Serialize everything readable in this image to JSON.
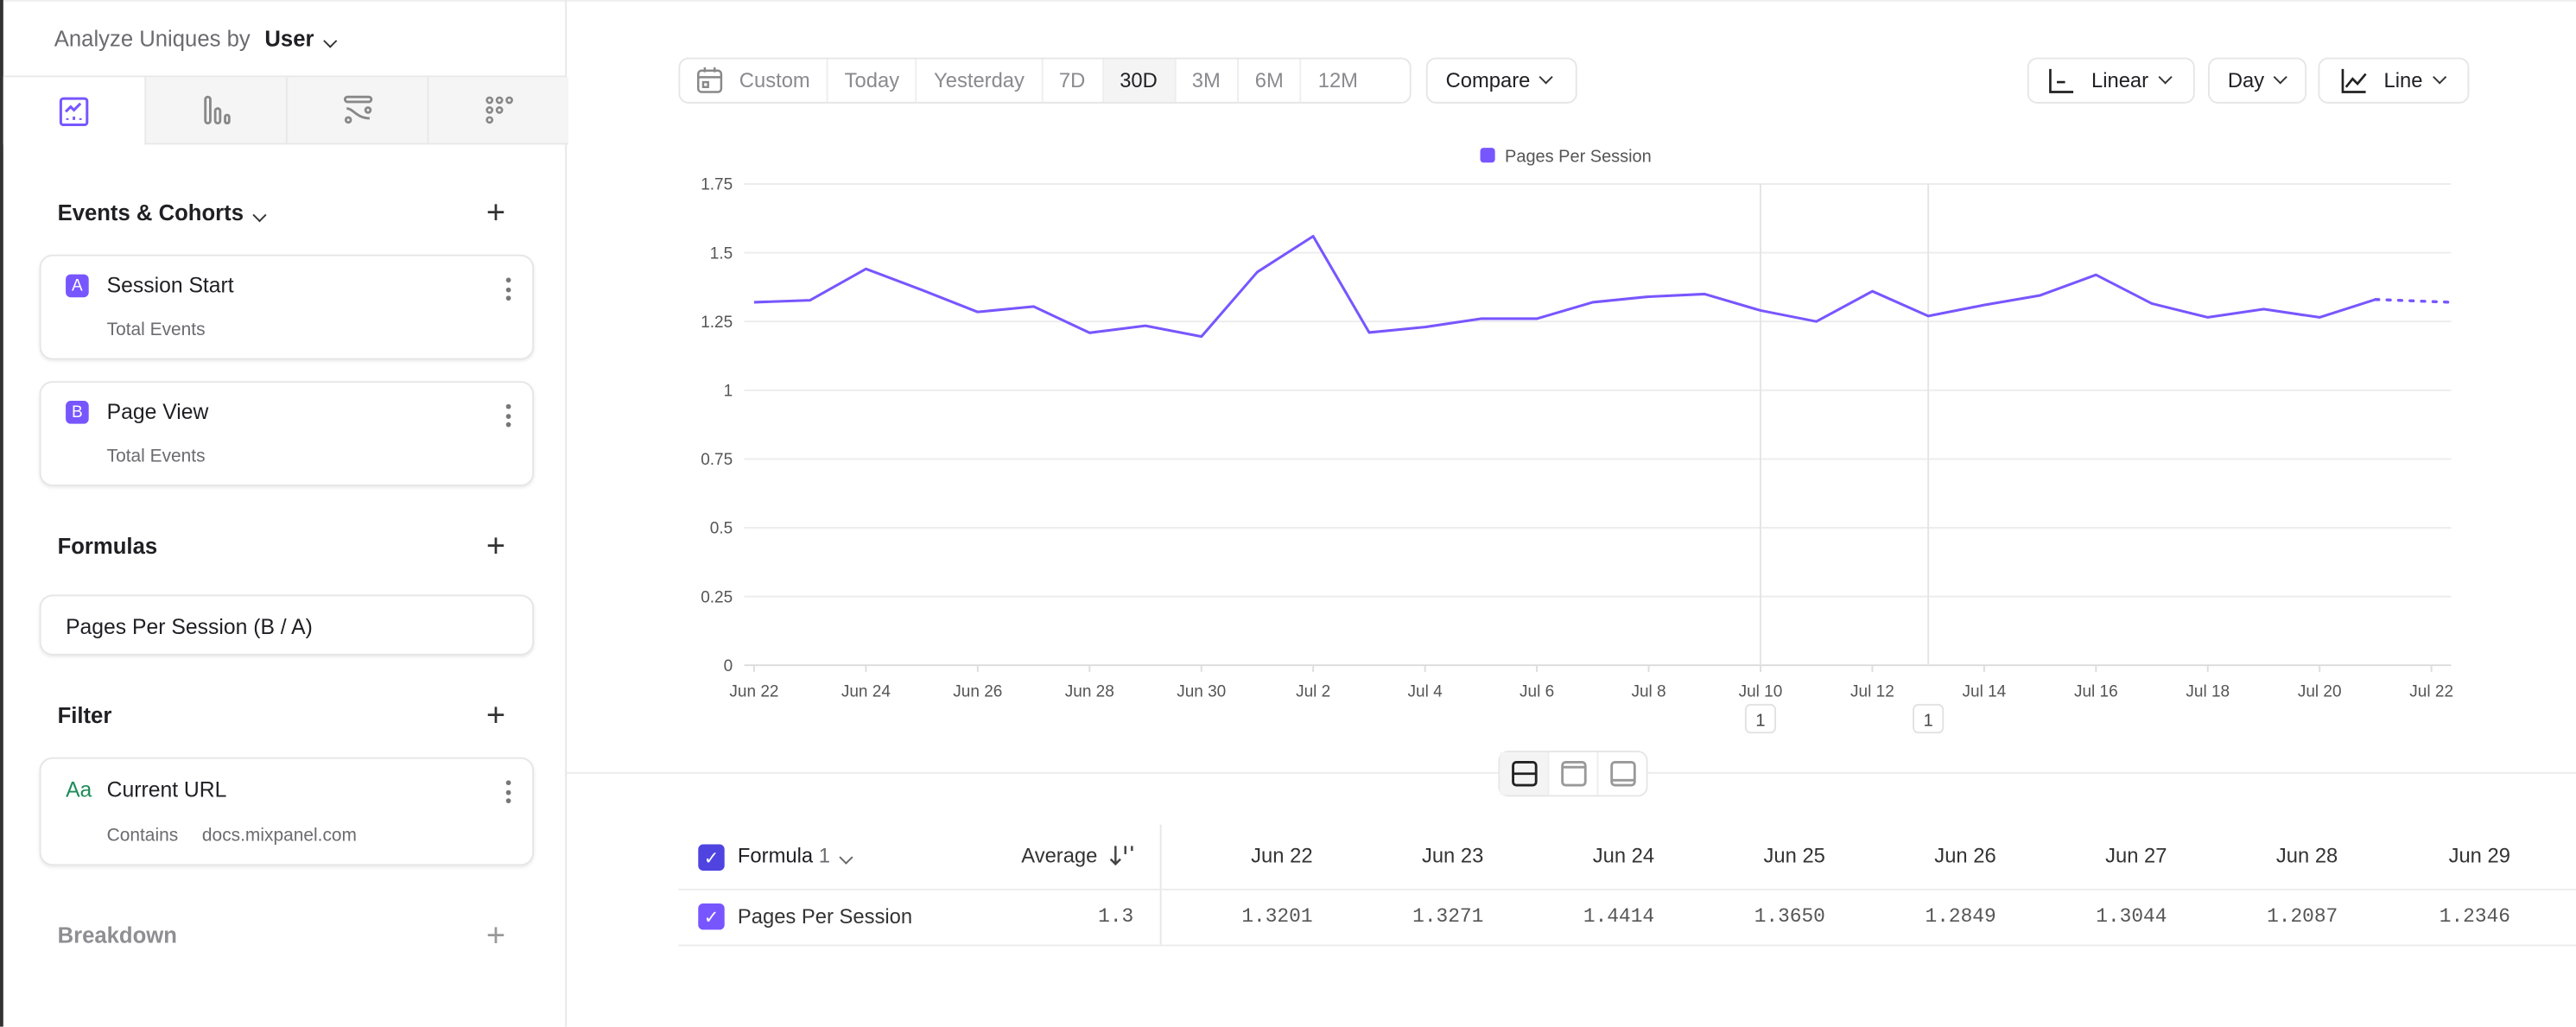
{
  "sidebar": {
    "analyze_label": "Analyze Uniques by",
    "analyze_value": "User",
    "tabs": [
      {
        "icon": "insights-chart-icon",
        "active": true
      },
      {
        "icon": "funnels-bars-icon",
        "active": false
      },
      {
        "icon": "flows-icon",
        "active": false
      },
      {
        "icon": "retention-grid-icon",
        "active": false
      }
    ],
    "events_title": "Events & Cohorts",
    "events": [
      {
        "badge": "A",
        "name": "Session Start",
        "sub": "Total Events"
      },
      {
        "badge": "B",
        "name": "Page View",
        "sub": "Total Events"
      }
    ],
    "formulas_title": "Formulas",
    "formula": "Pages Per Session (B / A)",
    "filter_title": "Filter",
    "filter": {
      "icon_text": "Aa",
      "name": "Current URL",
      "operator": "Contains",
      "value": "docs.mixpanel.com"
    },
    "breakdown_title": "Breakdown"
  },
  "toolbar": {
    "date_ranges": [
      "Custom",
      "Today",
      "Yesterday",
      "7D",
      "30D",
      "3M",
      "6M",
      "12M"
    ],
    "selected_range": "30D",
    "compare": "Compare",
    "scale": "Linear",
    "interval": "Day",
    "chart_type": "Line"
  },
  "chart_data": {
    "type": "line",
    "legend": [
      "Pages Per Session"
    ],
    "legend_placement": "top-center",
    "color": "#7856ff",
    "grid": true,
    "ylim": [
      0,
      1.75
    ],
    "yticks": [
      "0",
      "0.25",
      "0.5",
      "0.75",
      "1",
      "1.25",
      "1.5",
      "1.75"
    ],
    "xticks": [
      "Jun 22",
      "Jun 24",
      "Jun 26",
      "Jun 28",
      "Jun 30",
      "Jul 2",
      "Jul 4",
      "Jul 6",
      "Jul 8",
      "Jul 10",
      "Jul 12",
      "Jul 14",
      "Jul 16",
      "Jul 18",
      "Jul 20",
      "Jul 22"
    ],
    "x": [
      "Jun 22",
      "Jun 23",
      "Jun 24",
      "Jun 25",
      "Jun 26",
      "Jun 27",
      "Jun 28",
      "Jun 29",
      "Jun 30",
      "Jul 1",
      "Jul 2",
      "Jul 3",
      "Jul 4",
      "Jul 5",
      "Jul 6",
      "Jul 7",
      "Jul 8",
      "Jul 9",
      "Jul 10",
      "Jul 11",
      "Jul 12",
      "Jul 13",
      "Jul 14",
      "Jul 15",
      "Jul 16",
      "Jul 17",
      "Jul 18",
      "Jul 19",
      "Jul 20",
      "Jul 21",
      "Jul 22"
    ],
    "series": [
      {
        "name": "Pages Per Session",
        "values": [
          1.3201,
          1.3271,
          1.4414,
          1.365,
          1.2849,
          1.3044,
          1.2087,
          1.2346,
          1.195,
          1.43,
          1.56,
          1.21,
          1.23,
          1.26,
          1.26,
          1.32,
          1.34,
          1.35,
          1.29,
          1.25,
          1.36,
          1.27,
          1.31,
          1.345,
          1.42,
          1.315,
          1.265,
          1.295,
          1.265,
          1.33,
          1.32
        ]
      }
    ],
    "incomplete_last_point": true,
    "annotations": [
      {
        "x": "Jul 10",
        "label": "1"
      },
      {
        "x": "Jul 13",
        "label": "1"
      }
    ]
  },
  "table": {
    "group_label": "Formula",
    "group_count": "1",
    "average_header": "Average",
    "columns": [
      "Jun 22",
      "Jun 23",
      "Jun 24",
      "Jun 25",
      "Jun 26",
      "Jun 27",
      "Jun 28",
      "Jun 29"
    ],
    "rows": [
      {
        "name": "Pages Per Session",
        "average": "1.3",
        "values": [
          "1.3201",
          "1.3271",
          "1.4414",
          "1.3650",
          "1.2849",
          "1.3044",
          "1.2087",
          "1.2346"
        ]
      }
    ]
  }
}
